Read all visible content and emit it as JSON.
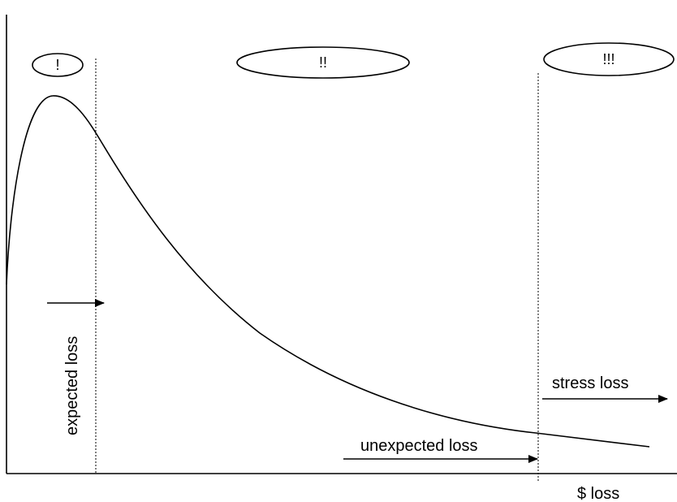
{
  "colors": {
    "line": "#000000",
    "background": "#ffffff"
  },
  "zones": {
    "severity_1": "!",
    "severity_2": "!!",
    "severity_3": "!!!"
  },
  "labels": {
    "expected_loss": "expected loss",
    "unexpected_loss": "unexpected loss",
    "stress_loss": "stress loss",
    "x_axis": "$ loss"
  }
}
